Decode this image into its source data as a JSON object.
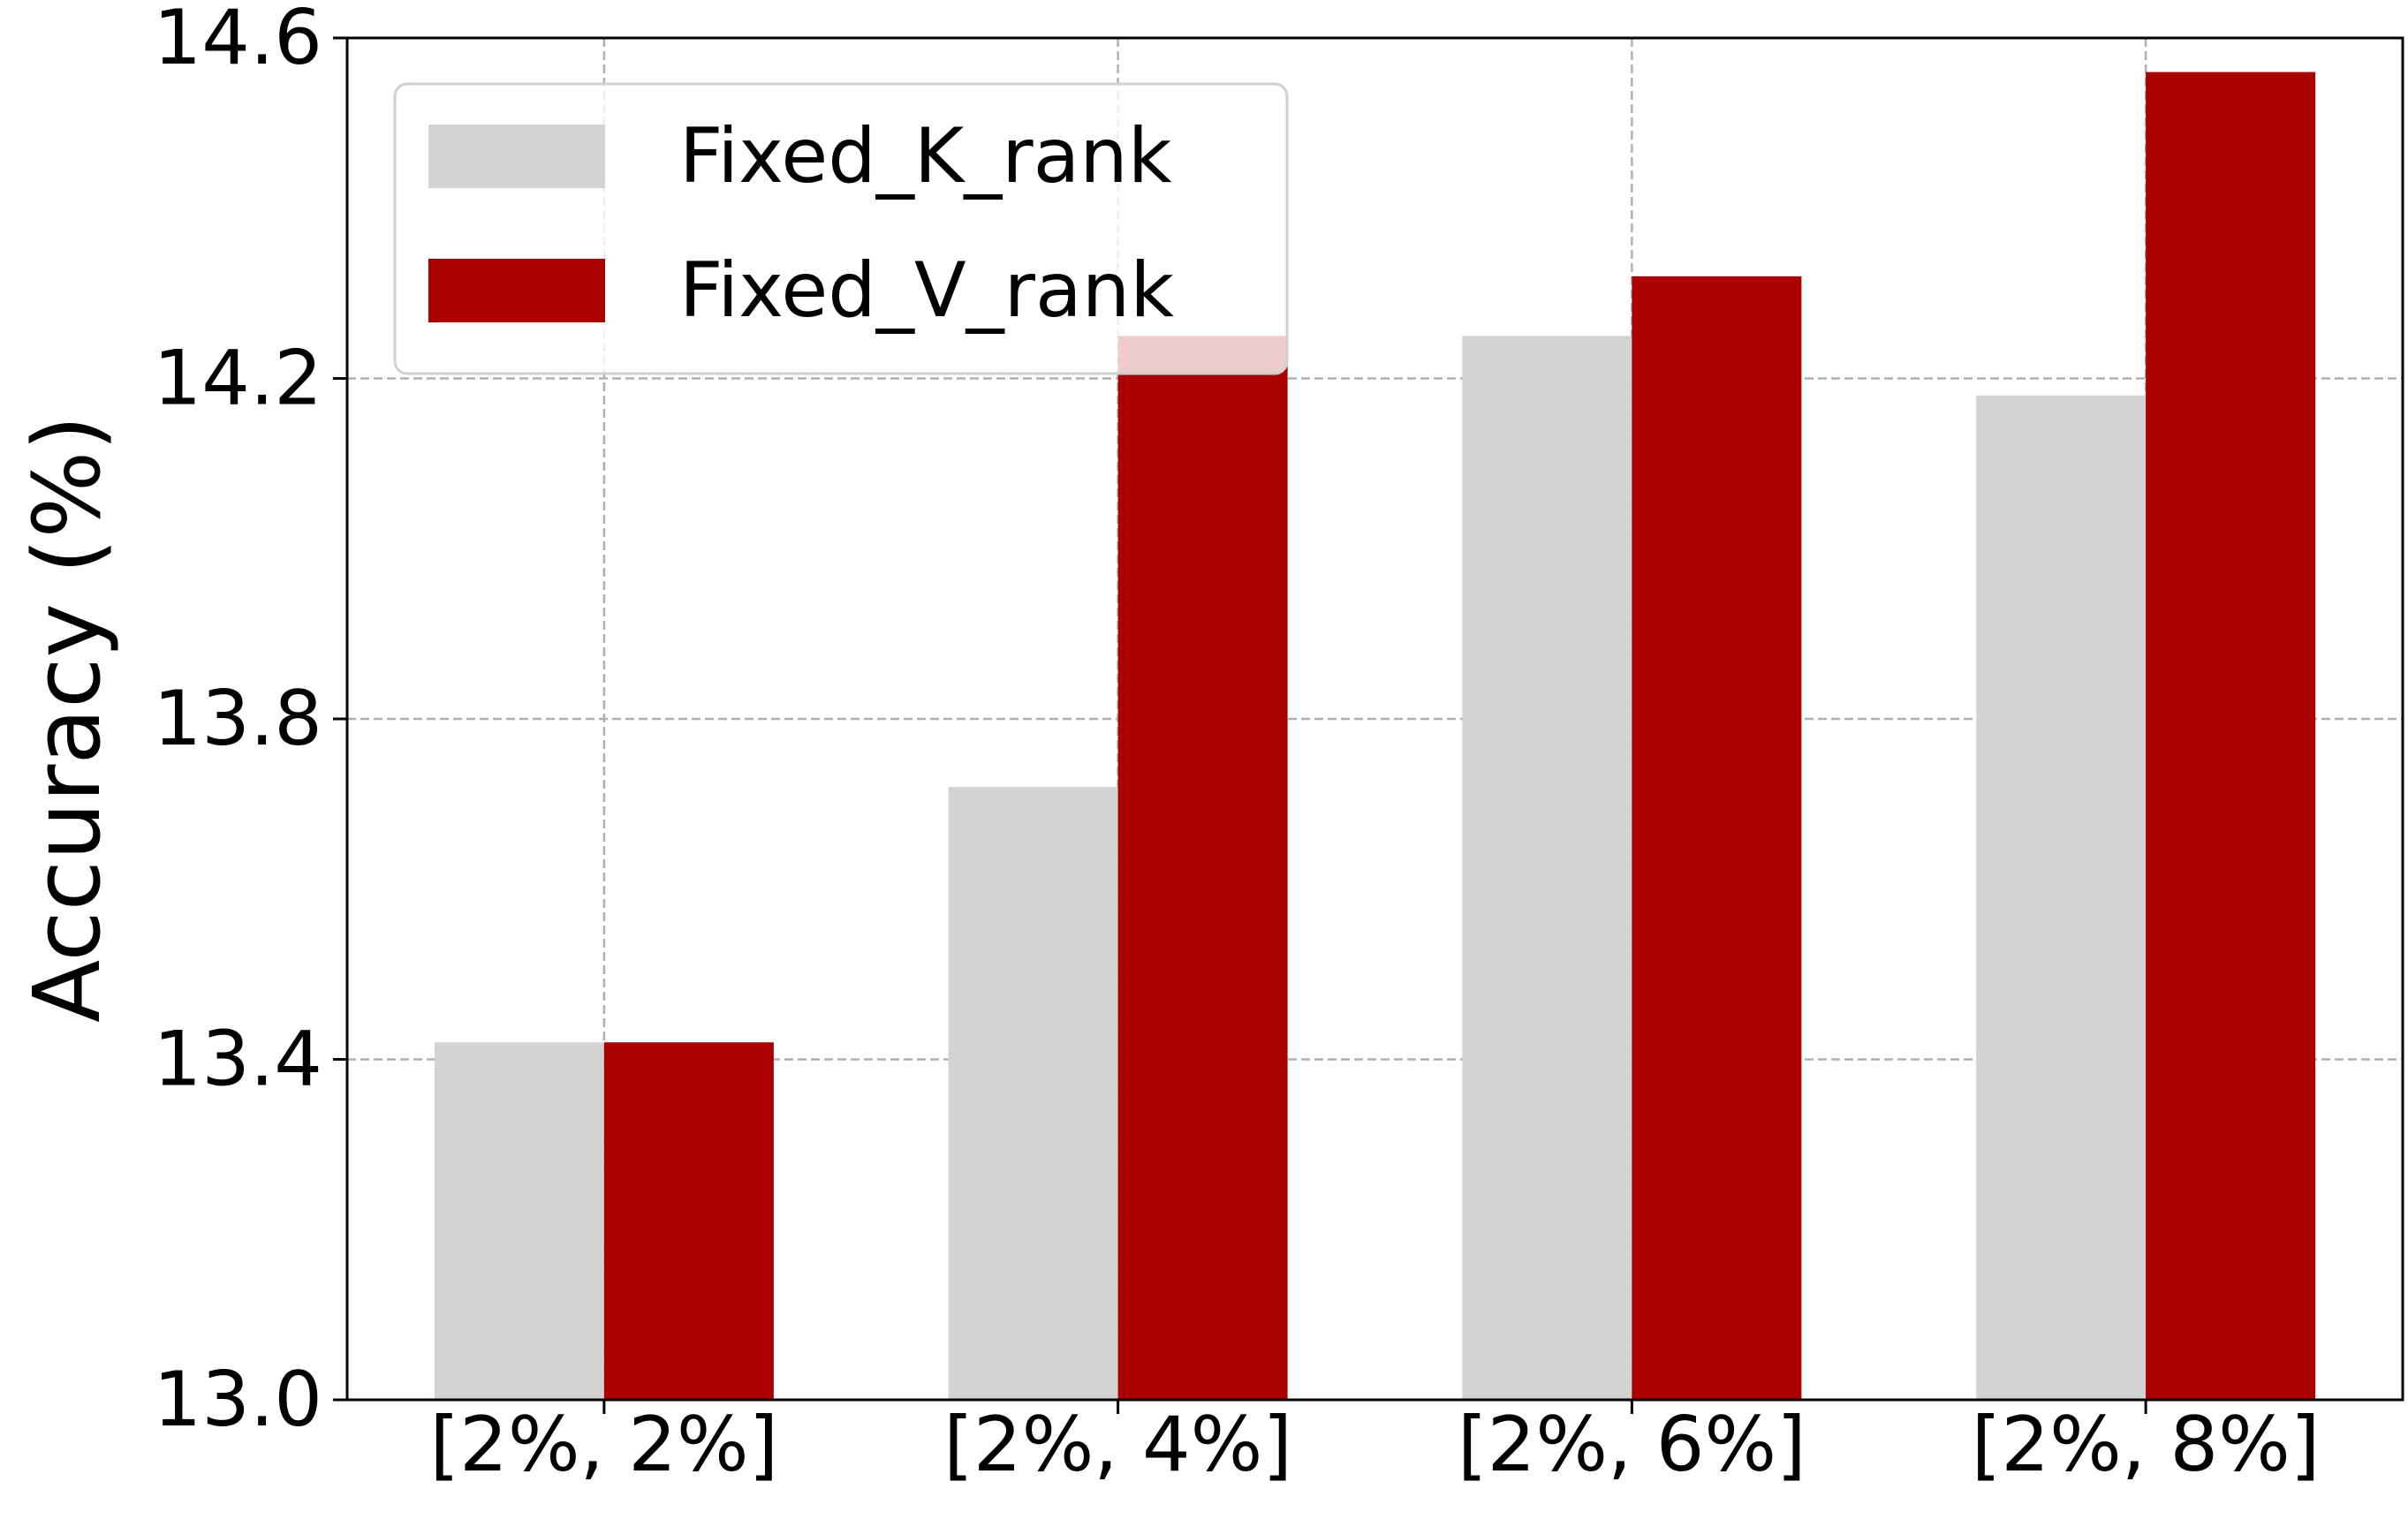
{
  "chart_data": {
    "type": "bar",
    "title": "",
    "xlabel": "",
    "ylabel": "Accuracy (%)",
    "categories": [
      "[2%, 2%]",
      "[2%, 4%]",
      "[2%, 6%]",
      "[2%, 8%]"
    ],
    "series": [
      {
        "name": "Fixed_K_rank",
        "color": "#d3d3d3",
        "values": [
          13.42,
          13.72,
          14.25,
          14.18
        ]
      },
      {
        "name": "Fixed_V_rank",
        "color": "#aa0000",
        "values": [
          13.42,
          14.25,
          14.32,
          14.56
        ]
      }
    ],
    "ylim": [
      13.0,
      14.6
    ],
    "yticks": [
      "13.0",
      "13.4",
      "13.8",
      "14.2",
      "14.6"
    ],
    "grid": true,
    "legend_position": "top-left"
  }
}
